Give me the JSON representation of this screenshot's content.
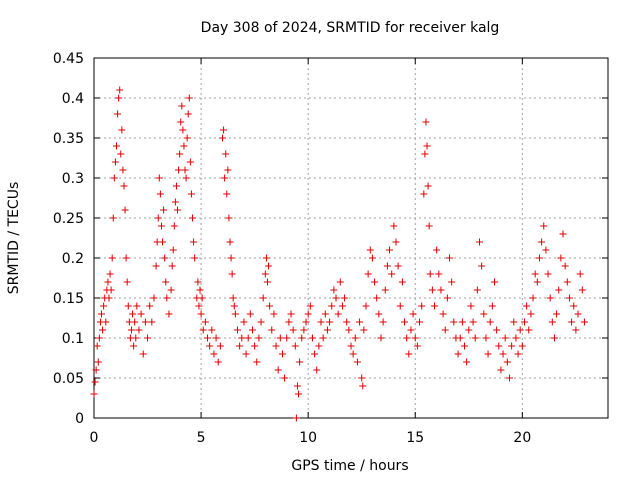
{
  "chart_data": {
    "type": "scatter",
    "title": "Day 308 of 2024, SRMTID for receiver kalg",
    "xlabel": "GPS time / hours",
    "ylabel": "SRMTID / TECUs",
    "xlim": [
      0,
      24
    ],
    "ylim": [
      0,
      0.45
    ],
    "xticks": [
      0,
      5,
      10,
      15,
      20
    ],
    "yticks": [
      0,
      0.05,
      0.1,
      0.15,
      0.2,
      0.25,
      0.3,
      0.35,
      0.4,
      0.45
    ],
    "xtick_labels": [
      "0",
      "5",
      "10",
      "15",
      "20"
    ],
    "ytick_labels": [
      "0",
      "0.05",
      "0.1",
      "0.15",
      "0.2",
      "0.25",
      "0.3",
      "0.35",
      "0.4",
      "0.45"
    ],
    "grid": true,
    "marker": "+",
    "color": "#e00000",
    "series": [
      {
        "name": "SRMTID",
        "points": [
          [
            0.0,
            0.03
          ],
          [
            0.05,
            0.045
          ],
          [
            0.1,
            0.06
          ],
          [
            0.15,
            0.09
          ],
          [
            0.2,
            0.07
          ],
          [
            0.25,
            0.1
          ],
          [
            0.3,
            0.12
          ],
          [
            0.35,
            0.13
          ],
          [
            0.4,
            0.11
          ],
          [
            0.45,
            0.14
          ],
          [
            0.5,
            0.15
          ],
          [
            0.55,
            0.12
          ],
          [
            0.6,
            0.16
          ],
          [
            0.65,
            0.17
          ],
          [
            0.7,
            0.15
          ],
          [
            0.75,
            0.18
          ],
          [
            0.8,
            0.16
          ],
          [
            0.85,
            0.2
          ],
          [
            0.9,
            0.25
          ],
          [
            0.95,
            0.3
          ],
          [
            1.0,
            0.32
          ],
          [
            1.05,
            0.34
          ],
          [
            1.1,
            0.38
          ],
          [
            1.15,
            0.4
          ],
          [
            1.2,
            0.41
          ],
          [
            1.25,
            0.33
          ],
          [
            1.3,
            0.36
          ],
          [
            1.35,
            0.31
          ],
          [
            1.4,
            0.29
          ],
          [
            1.45,
            0.26
          ],
          [
            1.5,
            0.2
          ],
          [
            1.55,
            0.17
          ],
          [
            1.6,
            0.14
          ],
          [
            1.65,
            0.12
          ],
          [
            1.7,
            0.1
          ],
          [
            1.75,
            0.11
          ],
          [
            1.8,
            0.13
          ],
          [
            1.85,
            0.09
          ],
          [
            1.9,
            0.12
          ],
          [
            1.95,
            0.1
          ],
          [
            2.0,
            0.14
          ],
          [
            2.1,
            0.11
          ],
          [
            2.2,
            0.13
          ],
          [
            2.3,
            0.08
          ],
          [
            2.4,
            0.12
          ],
          [
            2.5,
            0.1
          ],
          [
            2.6,
            0.14
          ],
          [
            2.7,
            0.12
          ],
          [
            2.8,
            0.15
          ],
          [
            2.9,
            0.19
          ],
          [
            2.95,
            0.22
          ],
          [
            3.0,
            0.25
          ],
          [
            3.05,
            0.3
          ],
          [
            3.1,
            0.28
          ],
          [
            3.15,
            0.24
          ],
          [
            3.2,
            0.22
          ],
          [
            3.25,
            0.26
          ],
          [
            3.3,
            0.2
          ],
          [
            3.35,
            0.17
          ],
          [
            3.4,
            0.15
          ],
          [
            3.5,
            0.13
          ],
          [
            3.6,
            0.16
          ],
          [
            3.65,
            0.19
          ],
          [
            3.7,
            0.21
          ],
          [
            3.75,
            0.24
          ],
          [
            3.8,
            0.27
          ],
          [
            3.85,
            0.29
          ],
          [
            3.9,
            0.26
          ],
          [
            3.95,
            0.31
          ],
          [
            4.0,
            0.33
          ],
          [
            4.05,
            0.37
          ],
          [
            4.1,
            0.39
          ],
          [
            4.15,
            0.36
          ],
          [
            4.2,
            0.34
          ],
          [
            4.25,
            0.31
          ],
          [
            4.3,
            0.3
          ],
          [
            4.35,
            0.35
          ],
          [
            4.4,
            0.38
          ],
          [
            4.45,
            0.4
          ],
          [
            4.5,
            0.32
          ],
          [
            4.55,
            0.28
          ],
          [
            4.6,
            0.25
          ],
          [
            4.65,
            0.22
          ],
          [
            4.7,
            0.2
          ],
          [
            4.8,
            0.15
          ],
          [
            4.85,
            0.17
          ],
          [
            4.9,
            0.14
          ],
          [
            4.95,
            0.16
          ],
          [
            5.0,
            0.13
          ],
          [
            5.05,
            0.15
          ],
          [
            5.1,
            0.11
          ],
          [
            5.2,
            0.12
          ],
          [
            5.3,
            0.1
          ],
          [
            5.4,
            0.09
          ],
          [
            5.5,
            0.11
          ],
          [
            5.6,
            0.08
          ],
          [
            5.7,
            0.1
          ],
          [
            5.8,
            0.07
          ],
          [
            5.9,
            0.09
          ],
          [
            6.0,
            0.35
          ],
          [
            6.05,
            0.36
          ],
          [
            6.1,
            0.3
          ],
          [
            6.15,
            0.33
          ],
          [
            6.2,
            0.28
          ],
          [
            6.25,
            0.31
          ],
          [
            6.3,
            0.25
          ],
          [
            6.35,
            0.22
          ],
          [
            6.4,
            0.2
          ],
          [
            6.45,
            0.18
          ],
          [
            6.5,
            0.15
          ],
          [
            6.55,
            0.14
          ],
          [
            6.6,
            0.13
          ],
          [
            6.7,
            0.11
          ],
          [
            6.8,
            0.09
          ],
          [
            6.9,
            0.1
          ],
          [
            7.0,
            0.12
          ],
          [
            7.1,
            0.08
          ],
          [
            7.2,
            0.1
          ],
          [
            7.3,
            0.13
          ],
          [
            7.4,
            0.11
          ],
          [
            7.5,
            0.09
          ],
          [
            7.6,
            0.07
          ],
          [
            7.7,
            0.1
          ],
          [
            7.8,
            0.12
          ],
          [
            7.9,
            0.15
          ],
          [
            8.0,
            0.18
          ],
          [
            8.05,
            0.2
          ],
          [
            8.1,
            0.17
          ],
          [
            8.15,
            0.19
          ],
          [
            8.2,
            0.14
          ],
          [
            8.3,
            0.11
          ],
          [
            8.4,
            0.13
          ],
          [
            8.5,
            0.09
          ],
          [
            8.6,
            0.06
          ],
          [
            8.7,
            0.1
          ],
          [
            8.8,
            0.08
          ],
          [
            8.9,
            0.05
          ],
          [
            9.0,
            0.1
          ],
          [
            9.1,
            0.12
          ],
          [
            9.2,
            0.13
          ],
          [
            9.3,
            0.11
          ],
          [
            9.4,
            0.09
          ],
          [
            9.45,
            0.0
          ],
          [
            9.5,
            0.04
          ],
          [
            9.55,
            0.03
          ],
          [
            9.6,
            0.07
          ],
          [
            9.7,
            0.1
          ],
          [
            9.8,
            0.11
          ],
          [
            9.9,
            0.12
          ],
          [
            10.0,
            0.13
          ],
          [
            10.1,
            0.14
          ],
          [
            10.2,
            0.1
          ],
          [
            10.3,
            0.08
          ],
          [
            10.4,
            0.06
          ],
          [
            10.5,
            0.09
          ],
          [
            10.6,
            0.12
          ],
          [
            10.7,
            0.1
          ],
          [
            10.8,
            0.13
          ],
          [
            10.9,
            0.11
          ],
          [
            11.0,
            0.12
          ],
          [
            11.1,
            0.14
          ],
          [
            11.2,
            0.16
          ],
          [
            11.3,
            0.15
          ],
          [
            11.4,
            0.13
          ],
          [
            11.5,
            0.17
          ],
          [
            11.6,
            0.14
          ],
          [
            11.7,
            0.15
          ],
          [
            11.8,
            0.12
          ],
          [
            11.9,
            0.11
          ],
          [
            12.0,
            0.09
          ],
          [
            12.1,
            0.08
          ],
          [
            12.2,
            0.1
          ],
          [
            12.3,
            0.07
          ],
          [
            12.4,
            0.12
          ],
          [
            12.5,
            0.05
          ],
          [
            12.55,
            0.04
          ],
          [
            12.6,
            0.11
          ],
          [
            12.7,
            0.14
          ],
          [
            12.8,
            0.18
          ],
          [
            12.9,
            0.21
          ],
          [
            13.0,
            0.2
          ],
          [
            13.1,
            0.17
          ],
          [
            13.2,
            0.15
          ],
          [
            13.3,
            0.13
          ],
          [
            13.4,
            0.1
          ],
          [
            13.5,
            0.12
          ],
          [
            13.6,
            0.16
          ],
          [
            13.7,
            0.19
          ],
          [
            13.8,
            0.21
          ],
          [
            13.9,
            0.18
          ],
          [
            14.0,
            0.24
          ],
          [
            14.1,
            0.22
          ],
          [
            14.2,
            0.19
          ],
          [
            14.3,
            0.14
          ],
          [
            14.4,
            0.17
          ],
          [
            14.5,
            0.12
          ],
          [
            14.6,
            0.1
          ],
          [
            14.7,
            0.08
          ],
          [
            14.8,
            0.11
          ],
          [
            14.9,
            0.13
          ],
          [
            15.0,
            0.1
          ],
          [
            15.1,
            0.09
          ],
          [
            15.2,
            0.12
          ],
          [
            15.3,
            0.14
          ],
          [
            15.4,
            0.28
          ],
          [
            15.45,
            0.33
          ],
          [
            15.5,
            0.37
          ],
          [
            15.55,
            0.34
          ],
          [
            15.6,
            0.29
          ],
          [
            15.65,
            0.24
          ],
          [
            15.7,
            0.18
          ],
          [
            15.8,
            0.16
          ],
          [
            15.9,
            0.14
          ],
          [
            16.0,
            0.21
          ],
          [
            16.1,
            0.18
          ],
          [
            16.2,
            0.16
          ],
          [
            16.3,
            0.13
          ],
          [
            16.4,
            0.11
          ],
          [
            16.5,
            0.15
          ],
          [
            16.6,
            0.2
          ],
          [
            16.7,
            0.17
          ],
          [
            16.8,
            0.12
          ],
          [
            16.9,
            0.1
          ],
          [
            17.0,
            0.08
          ],
          [
            17.1,
            0.1
          ],
          [
            17.2,
            0.12
          ],
          [
            17.3,
            0.09
          ],
          [
            17.4,
            0.07
          ],
          [
            17.5,
            0.11
          ],
          [
            17.6,
            0.14
          ],
          [
            17.7,
            0.12
          ],
          [
            17.8,
            0.1
          ],
          [
            17.9,
            0.16
          ],
          [
            18.0,
            0.22
          ],
          [
            18.1,
            0.19
          ],
          [
            18.2,
            0.13
          ],
          [
            18.3,
            0.1
          ],
          [
            18.4,
            0.08
          ],
          [
            18.5,
            0.12
          ],
          [
            18.6,
            0.14
          ],
          [
            18.7,
            0.17
          ],
          [
            18.8,
            0.11
          ],
          [
            18.9,
            0.09
          ],
          [
            19.0,
            0.06
          ],
          [
            19.1,
            0.08
          ],
          [
            19.2,
            0.1
          ],
          [
            19.3,
            0.07
          ],
          [
            19.4,
            0.05
          ],
          [
            19.5,
            0.09
          ],
          [
            19.6,
            0.12
          ],
          [
            19.7,
            0.1
          ],
          [
            19.8,
            0.08
          ],
          [
            19.9,
            0.11
          ],
          [
            20.0,
            0.09
          ],
          [
            20.1,
            0.12
          ],
          [
            20.2,
            0.14
          ],
          [
            20.3,
            0.11
          ],
          [
            20.4,
            0.13
          ],
          [
            20.5,
            0.15
          ],
          [
            20.6,
            0.18
          ],
          [
            20.7,
            0.17
          ],
          [
            20.8,
            0.2
          ],
          [
            20.9,
            0.22
          ],
          [
            21.0,
            0.24
          ],
          [
            21.1,
            0.21
          ],
          [
            21.2,
            0.18
          ],
          [
            21.3,
            0.15
          ],
          [
            21.4,
            0.12
          ],
          [
            21.5,
            0.1
          ],
          [
            21.6,
            0.13
          ],
          [
            21.7,
            0.16
          ],
          [
            21.8,
            0.2
          ],
          [
            21.9,
            0.23
          ],
          [
            22.0,
            0.19
          ],
          [
            22.1,
            0.17
          ],
          [
            22.2,
            0.15
          ],
          [
            22.3,
            0.12
          ],
          [
            22.4,
            0.14
          ],
          [
            22.5,
            0.11
          ],
          [
            22.6,
            0.13
          ],
          [
            22.7,
            0.18
          ],
          [
            22.8,
            0.16
          ],
          [
            22.9,
            0.12
          ]
        ]
      }
    ]
  }
}
